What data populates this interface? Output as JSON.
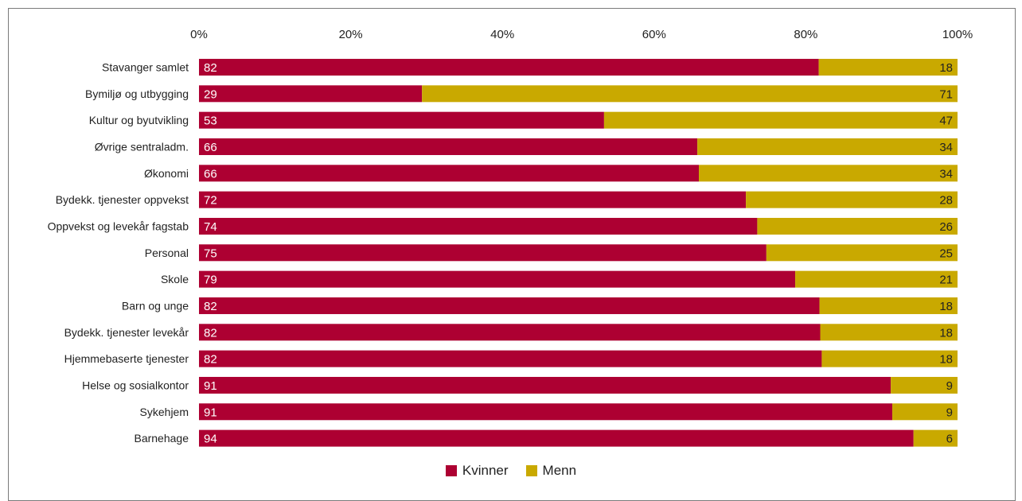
{
  "chart_data": {
    "type": "bar",
    "orientation": "horizontal",
    "stacked": "percent",
    "categories": [
      "Stavanger samlet",
      "Bymiljø og utbygging",
      "Kultur og byutvikling",
      "Øvrige sentraladm.",
      "Økonomi",
      "Bydekk. tjenester oppvekst",
      "Oppvekst og levekår fagstab",
      "Personal",
      "Skole",
      "Barn og unge",
      "Bydekk. tjenester levekår",
      "Hjemmebaserte tjenester",
      "Helse og sosialkontor",
      "Sykehjem",
      "Barnehage"
    ],
    "series": [
      {
        "name": "Kvinner",
        "color": "#ad0032",
        "values": [
          81.7,
          29.4,
          53.4,
          65.7,
          65.9,
          72.1,
          73.6,
          74.8,
          78.6,
          81.8,
          81.9,
          82.1,
          91.2,
          91.4,
          94.2
        ],
        "labels": [
          "82",
          "29",
          "53",
          "66",
          "66",
          "72",
          "74",
          "75",
          "79",
          "82",
          "82",
          "82",
          "91",
          "91",
          "94"
        ]
      },
      {
        "name": "Menn",
        "color": "#c9a900",
        "values": [
          18.3,
          70.6,
          46.6,
          34.3,
          34.1,
          27.9,
          26.4,
          25.2,
          21.4,
          18.2,
          18.1,
          17.9,
          8.8,
          8.6,
          5.8
        ],
        "labels": [
          "18",
          "71",
          "47",
          "34",
          "34",
          "28",
          "26",
          "25",
          "21",
          "18",
          "18",
          "18",
          "9",
          "9",
          "6"
        ]
      }
    ],
    "x_ticks": [
      "0%",
      "20%",
      "40%",
      "60%",
      "80%",
      "100%"
    ],
    "xlim": [
      0,
      100
    ],
    "grid": false,
    "legend_position": "bottom",
    "title": "",
    "xlabel": "",
    "ylabel": ""
  }
}
